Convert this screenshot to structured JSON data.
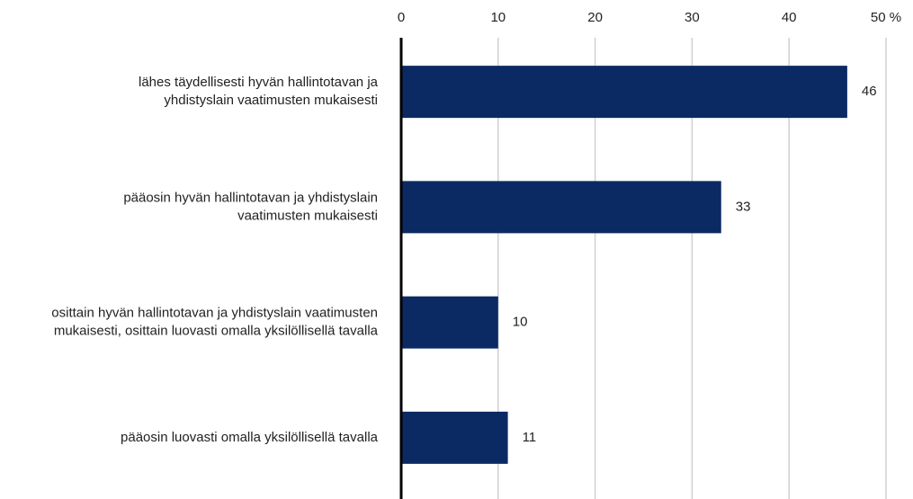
{
  "chart_data": {
    "type": "hbar",
    "categories": [
      "lähes täydellisesti hyvän hallintotavan ja\nyhdistyslain vaatimusten mukaisesti",
      "pääosin hyvän hallintotavan ja yhdistyslain\nvaatimusten mukaisesti",
      "osittain hyvän hallintotavan ja yhdistyslain vaatimusten\nmukaisesti, osittain luovasti omalla yksilöllisellä tavalla",
      "pääosin luovasti omalla yksilöllisellä tavalla"
    ],
    "values": [
      46,
      33,
      10,
      11
    ],
    "color": "#0b2a63",
    "xlim": [
      0,
      50
    ],
    "xticks": [
      0,
      10,
      20,
      30,
      40,
      {
        "value": 50,
        "label": "50 %"
      }
    ],
    "grid": true
  }
}
